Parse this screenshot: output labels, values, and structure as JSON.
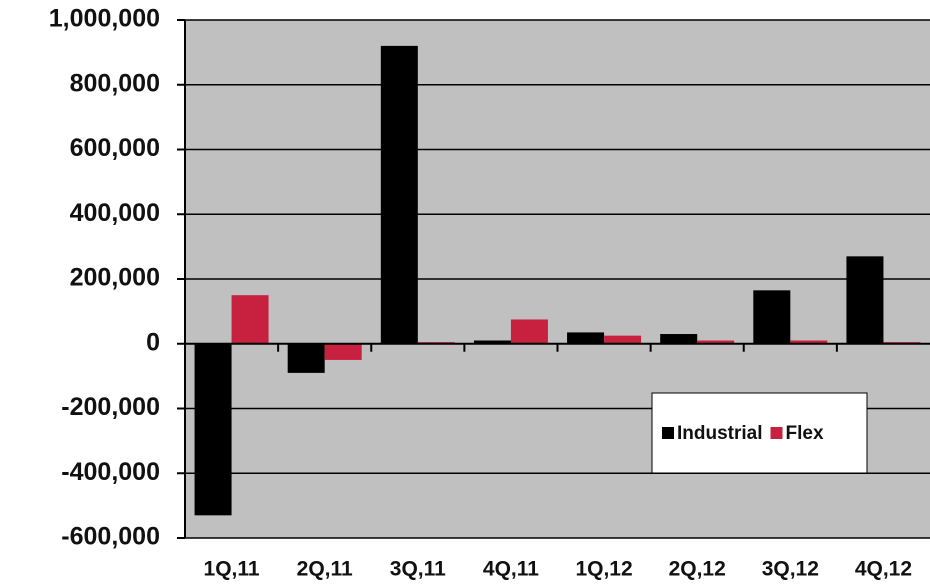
{
  "chart_data": {
    "type": "bar",
    "categories": [
      "1Q,11",
      "2Q,11",
      "3Q,11",
      "4Q,11",
      "1Q,12",
      "2Q,12",
      "3Q,12",
      "4Q,12"
    ],
    "series": [
      {
        "name": "Industrial",
        "color": "#000000",
        "values": [
          -530000,
          -90000,
          920000,
          10000,
          35000,
          30000,
          165000,
          270000
        ]
      },
      {
        "name": "Flex",
        "color": "#c8203f",
        "values": [
          150000,
          -50000,
          5000,
          75000,
          25000,
          10000,
          10000,
          5000
        ]
      }
    ],
    "ylim": [
      -600000,
      1000000
    ],
    "yticks": [
      {
        "value": -600000,
        "label": "-600,000"
      },
      {
        "value": -400000,
        "label": "-400,000"
      },
      {
        "value": -200000,
        "label": "-200,000"
      },
      0,
      {
        "value": 200000,
        "label": "200,000"
      },
      {
        "value": 400000,
        "label": "400,000"
      },
      {
        "value": 600000,
        "label": "600,000"
      },
      {
        "value": 800000,
        "label": "800,000"
      },
      {
        "value": 1000000,
        "label": "1,000,000"
      }
    ],
    "grid": true,
    "legend": "lower right",
    "plot_background": "#c0c0c0"
  }
}
